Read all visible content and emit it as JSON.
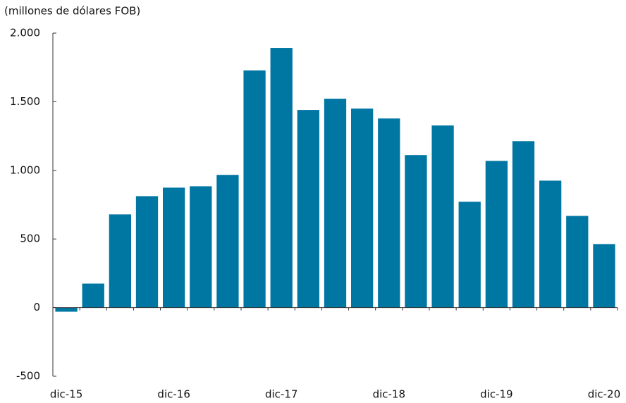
{
  "chart_data": {
    "type": "bar",
    "subtitle": "(millones de dólares FOB)",
    "categories": [
      "dic-15",
      null,
      null,
      null,
      "dic-16",
      null,
      null,
      null,
      "dic-17",
      null,
      null,
      null,
      "dic-18",
      null,
      null,
      null,
      "dic-19",
      null,
      null,
      null,
      "dic-20"
    ],
    "values": [
      -30,
      175,
      679,
      812,
      874,
      884,
      967,
      1728,
      1892,
      1440,
      1522,
      1450,
      1378,
      1111,
      1327,
      771,
      1069,
      1213,
      925,
      668,
      463
    ],
    "color": "#0076a3",
    "ylim": [
      -500,
      2000
    ],
    "yticks": [
      -500,
      0,
      500,
      {
        "value": 1000,
        "label": "1.000"
      },
      {
        "value": 1500,
        "label": "1.500"
      },
      {
        "value": 2000,
        "label": "2.000"
      }
    ],
    "grid": false
  }
}
